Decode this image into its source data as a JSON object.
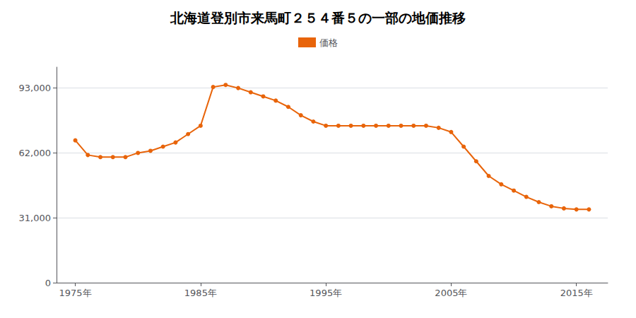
{
  "chart_data": {
    "type": "line",
    "title": "北海道登別市来馬町２５４番５の一部の地価推移",
    "x": [
      1975,
      1976,
      1977,
      1978,
      1979,
      1980,
      1981,
      1982,
      1983,
      1984,
      1985,
      1986,
      1987,
      1988,
      1989,
      1990,
      1991,
      1992,
      1993,
      1994,
      1995,
      1996,
      1997,
      1998,
      1999,
      2000,
      2001,
      2002,
      2003,
      2004,
      2005,
      2006,
      2007,
      2008,
      2009,
      2010,
      2011,
      2012,
      2013,
      2014,
      2015,
      2016
    ],
    "series": [
      {
        "name": "価格",
        "color": "#E8640A",
        "marker": "circle",
        "values": [
          68000,
          61000,
          60000,
          60000,
          60000,
          62000,
          63000,
          65000,
          67000,
          71000,
          75000,
          93500,
          94500,
          93000,
          91000,
          89000,
          87000,
          84000,
          80000,
          77000,
          75000,
          75000,
          75000,
          75000,
          75000,
          75000,
          75000,
          75000,
          75000,
          74000,
          72000,
          65000,
          58000,
          51000,
          47000,
          44000,
          41000,
          38500,
          36500,
          35500,
          35000,
          35000
        ]
      }
    ],
    "xlim": [
      1973.5,
      2017.5
    ],
    "xticks": [
      {
        "value": 1975,
        "label": "1975年"
      },
      {
        "value": 1985,
        "label": "1985年"
      },
      {
        "value": 1995,
        "label": "1995年"
      },
      {
        "value": 2005,
        "label": "2005年"
      },
      {
        "value": 2015,
        "label": "2015年"
      }
    ],
    "ylim": [
      0,
      103000
    ],
    "yticks": [
      0,
      {
        "value": 31000,
        "label": "31,000"
      },
      {
        "value": 62000,
        "label": "62,000"
      },
      {
        "value": 93000,
        "label": "93,000"
      }
    ],
    "grid": true,
    "legend": "top"
  }
}
